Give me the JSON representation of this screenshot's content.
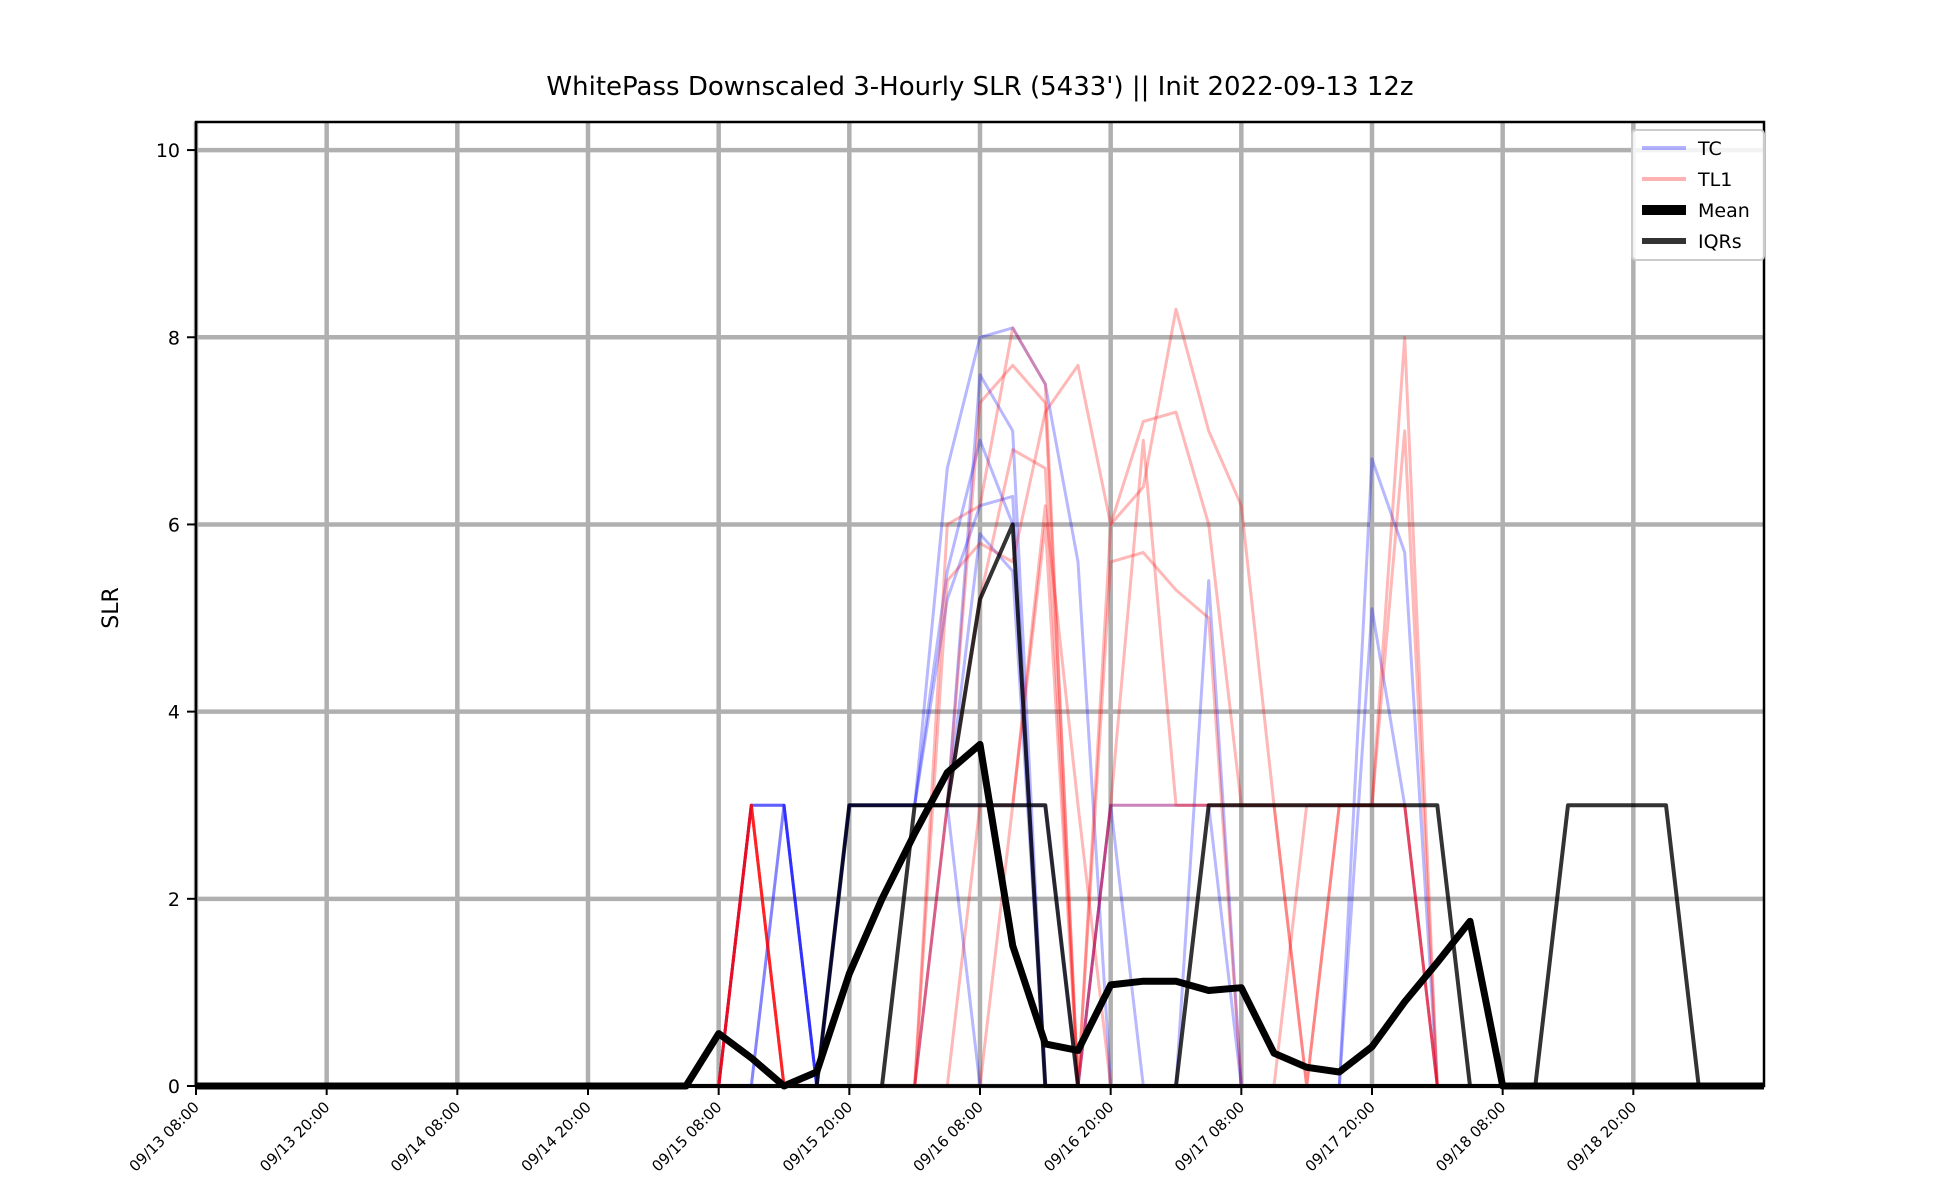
{
  "chart_data": {
    "type": "line",
    "title": "WhitePass Downscaled 3-Hourly SLR (5433') || Init 2022-09-13 12z",
    "ylabel": "SLR",
    "xlabel": "",
    "ylim": [
      0,
      10.3
    ],
    "yticks": [
      0,
      2,
      4,
      6,
      8,
      10
    ],
    "x_range": [
      "09/13 08:00",
      "09/19 11:00"
    ],
    "xticks": [
      "09/13 08:00",
      "09/13 20:00",
      "09/14 08:00",
      "09/14 20:00",
      "09/15 08:00",
      "09/15 20:00",
      "09/16 08:00",
      "09/16 20:00",
      "09/17 08:00",
      "09/17 20:00",
      "09/18 08:00",
      "09/18 20:00"
    ],
    "x_step": "3 hours",
    "grid": true,
    "legend_position": "top-right",
    "legend": [
      {
        "label": "TC",
        "color": "#0000ff",
        "opacity": 0.3,
        "width": 2
      },
      {
        "label": "TL1",
        "color": "#ff0000",
        "opacity": 0.3,
        "width": 2
      },
      {
        "label": "Mean",
        "color": "#000000",
        "opacity": 1,
        "width": 5
      },
      {
        "label": "IQRs",
        "color": "#000000",
        "opacity": 0.8,
        "width": 3
      }
    ],
    "series_colors": {
      "TC": "#0000ff",
      "TL1": "#ff0000",
      "Mean": "#000000",
      "IQRs": "#000000"
    },
    "series": [
      {
        "group": "TC",
        "values": {
          "16": [
            0,
            3,
            3,
            0,
            3,
            3,
            3,
            6.6,
            8.0,
            8.1,
            7.5,
            5.6,
            0,
            0
          ]
        }
      },
      {
        "group": "TC",
        "values": {
          "16": [
            0,
            3,
            3,
            0,
            3,
            3,
            3,
            3,
            7.6,
            7.0,
            0,
            0,
            0,
            0
          ]
        }
      },
      {
        "group": "TC",
        "values": {
          "16": [
            0,
            3,
            3,
            0,
            3,
            3,
            3,
            5.5,
            6.9,
            6.0,
            0,
            0,
            0,
            0
          ]
        }
      },
      {
        "group": "TC",
        "values": {
          "16": [
            0,
            0,
            3,
            0,
            3,
            3,
            3,
            5.2,
            6.2,
            6.3,
            0,
            0,
            0,
            0
          ]
        }
      },
      {
        "group": "TC",
        "values": {
          "16": [
            0,
            0,
            3,
            0,
            3,
            3,
            3,
            3,
            5.9,
            5.5,
            0,
            0,
            0,
            0
          ]
        }
      },
      {
        "group": "TC",
        "values": {
          "16": [
            0,
            0,
            0,
            0,
            3,
            3,
            3,
            3,
            0,
            0,
            0,
            0,
            0,
            0
          ],
          "27": [
            0,
            3,
            0,
            0,
            5.4,
            0,
            0,
            0,
            0,
            6.7,
            5.7
          ]
        }
      },
      {
        "group": "TC",
        "values": {
          "16": [
            0,
            0,
            0,
            0,
            0,
            0,
            0,
            3,
            3,
            3,
            3,
            0,
            0,
            0
          ],
          "27": [
            0,
            3,
            3,
            3,
            3,
            0,
            0,
            0,
            0,
            5.1,
            3
          ]
        }
      },
      {
        "group": "TL1",
        "values": {
          "16": [
            0,
            3,
            0,
            0,
            0,
            0,
            0,
            6.0,
            6.2,
            8.1,
            7.5,
            6.3,
            0,
            0
          ],
          "27": [
            0,
            6.0,
            6.4,
            8.3,
            7.0,
            6.2,
            3,
            0,
            3,
            3,
            3
          ]
        }
      },
      {
        "group": "TL1",
        "values": {
          "16": [
            0,
            3,
            0,
            0,
            0,
            0,
            0,
            5.4,
            5.8,
            5.6,
            7.2,
            3,
            3,
            7.5
          ],
          "27": [
            7.7,
            6.0,
            7.1,
            7.2,
            6.0,
            3,
            3,
            3,
            3,
            3,
            8.0
          ]
        }
      },
      {
        "group": "TL1",
        "values": {
          "16": [
            0,
            3,
            0,
            0,
            0,
            0,
            0,
            3,
            7.3,
            7.7,
            7.3,
            5.5,
            3,
            3
          ],
          "27": [
            0,
            5.6,
            5.7,
            5.3,
            5.0,
            0,
            0,
            3,
            3,
            3,
            7.0
          ]
        }
      },
      {
        "group": "TL1",
        "values": {
          "16": [
            0,
            3,
            0,
            0,
            0,
            0,
            0,
            3,
            5.2,
            6.8,
            6.6,
            3,
            3,
            0
          ],
          "27": [
            0,
            3,
            3,
            3,
            3,
            3,
            3,
            0,
            3,
            3,
            3
          ]
        }
      },
      {
        "group": "TL1",
        "values": {
          "16": [
            0,
            3,
            0,
            0,
            0,
            0,
            0,
            0,
            3,
            3,
            6.0,
            0,
            0,
            0
          ],
          "27": [
            0,
            3,
            6.9,
            3,
            3,
            3,
            3,
            3,
            3,
            3,
            3
          ]
        }
      },
      {
        "group": "TL1",
        "values": {
          "16": [
            0,
            3,
            0,
            0,
            0,
            0,
            0,
            0,
            0,
            3,
            6.2,
            3,
            0,
            0
          ]
        }
      }
    ],
    "mean": [
      0.56,
      0.3,
      0,
      0.15,
      1.2,
      2.0,
      2.7,
      3.35,
      3.65,
      1.5,
      0.45,
      0.38,
      1.08,
      1.12,
      1.12,
      1.02,
      1.05,
      0.35,
      0.2,
      0.15,
      0.42,
      0.9,
      1.32,
      1.76
    ],
    "iqr_lines": [
      {
        "values": {
          "15": [
            0,
            0,
            0,
            0,
            0,
            3,
            3,
            3,
            3,
            3,
            3,
            3,
            0,
            0,
            0,
            0,
            3,
            3,
            3,
            3,
            3,
            3,
            3,
            3,
            0,
            0,
            0,
            3,
            3,
            3,
            3
          ]
        }
      },
      {
        "values": {
          "15": [
            0,
            0,
            0,
            0,
            0,
            0,
            0,
            3,
            3,
            5.2,
            6.0,
            0,
            0,
            0,
            0,
            0,
            0,
            0,
            0,
            0,
            0,
            0,
            0,
            0,
            0,
            0,
            0,
            0,
            0,
            0,
            0
          ]
        }
      },
      {
        "values": {
          "15": [
            0,
            0,
            0,
            0,
            0,
            0,
            0,
            0,
            0,
            0,
            0,
            0,
            0,
            0,
            0,
            0,
            0,
            0,
            0,
            0,
            0,
            0,
            0,
            0,
            0,
            0,
            0,
            0,
            0,
            0,
            0
          ]
        }
      }
    ]
  }
}
